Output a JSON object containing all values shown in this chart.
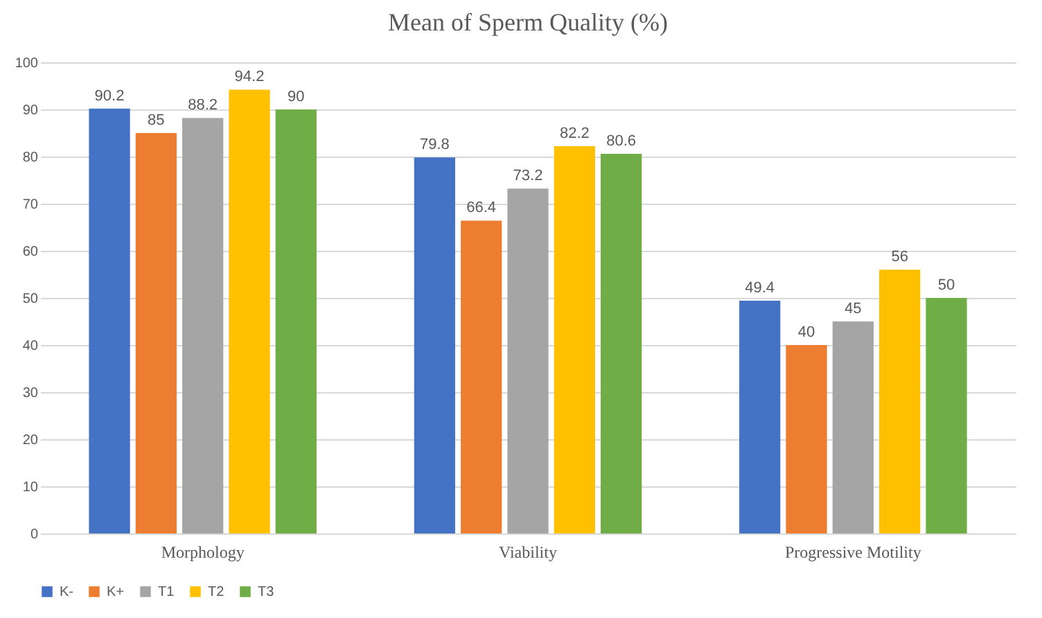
{
  "chart_data": {
    "type": "bar",
    "title": "Mean of Sperm Quality (%)",
    "categories": [
      "Morphology",
      "Viability",
      "Progressive Motility"
    ],
    "series": [
      {
        "name": "K-",
        "color": "#4472c4",
        "values": [
          90.2,
          79.8,
          49.4
        ]
      },
      {
        "name": "K+",
        "color": "#ed7d31",
        "values": [
          85,
          66.4,
          40
        ]
      },
      {
        "name": "T1",
        "color": "#a5a5a5",
        "values": [
          88.2,
          73.2,
          45
        ]
      },
      {
        "name": "T2",
        "color": "#ffc000",
        "values": [
          94.2,
          82.2,
          56
        ]
      },
      {
        "name": "T3",
        "color": "#70ad47",
        "values": [
          90,
          80.6,
          50
        ]
      }
    ],
    "ylim": [
      0,
      100
    ],
    "yticks": [
      0,
      10,
      20,
      30,
      40,
      50,
      60,
      70,
      80,
      90,
      100
    ],
    "grid": "y",
    "legend": "bottom",
    "data_labels": true
  }
}
